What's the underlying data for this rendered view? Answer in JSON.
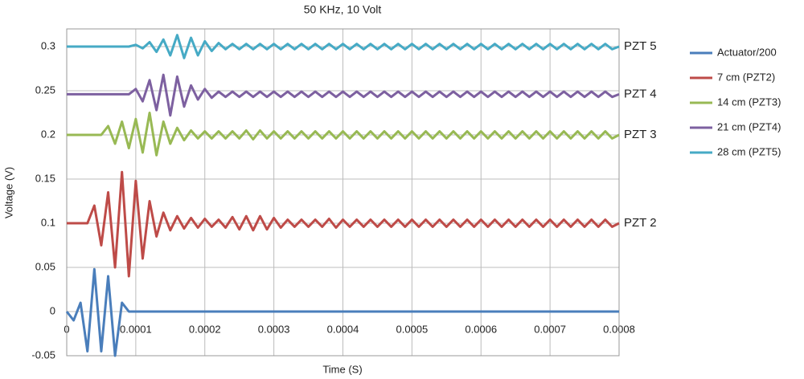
{
  "chart_data": {
    "type": "line",
    "title": "50 KHz, 10 Volt",
    "x_label": "Time (S)",
    "y_label": "Voltage (V)",
    "x": [
      0,
      1e-05,
      2e-05,
      3e-05,
      4e-05,
      5e-05,
      6e-05,
      7e-05,
      8e-05,
      9e-05,
      0.0001,
      0.00011,
      0.00012,
      0.00013,
      0.00014,
      0.00015,
      0.00016,
      0.00017,
      0.00018,
      0.00019,
      0.0002,
      0.00021,
      0.00022,
      0.00023,
      0.00024,
      0.00025,
      0.00026,
      0.00027,
      0.00028,
      0.00029,
      0.0003,
      0.00031,
      0.00032,
      0.00033,
      0.00034,
      0.00035,
      0.00036,
      0.00037,
      0.00038,
      0.00039,
      0.0004,
      0.00041,
      0.00042,
      0.00043,
      0.00044,
      0.00045,
      0.00046,
      0.00047,
      0.00048,
      0.00049,
      0.0005,
      0.00051,
      0.00052,
      0.00053,
      0.00054,
      0.00055,
      0.00056,
      0.00057,
      0.00058,
      0.00059,
      0.0006,
      0.00061,
      0.00062,
      0.00063,
      0.00064,
      0.00065,
      0.00066,
      0.00067,
      0.00068,
      0.00069,
      0.0007,
      0.00071,
      0.00072,
      0.00073,
      0.00074,
      0.00075,
      0.00076,
      0.00077,
      0.00078,
      0.00079,
      0.0008
    ],
    "series": [
      {
        "name": "Actuator/200",
        "color": "#4a7ebb",
        "values": [
          0,
          -0.01,
          0.01,
          -0.045,
          0.048,
          -0.045,
          0.04,
          -0.05,
          0.01,
          0,
          0,
          0,
          0,
          0,
          0,
          0,
          0,
          0,
          0,
          0,
          0,
          0,
          0,
          0,
          0,
          0,
          0,
          0,
          0,
          0,
          0,
          0,
          0,
          0,
          0,
          0,
          0,
          0,
          0,
          0,
          0,
          0,
          0,
          0,
          0,
          0,
          0,
          0,
          0,
          0,
          0,
          0,
          0,
          0,
          0,
          0,
          0,
          0,
          0,
          0,
          0,
          0,
          0,
          0,
          0,
          0,
          0,
          0,
          0,
          0,
          0,
          0,
          0,
          0,
          0,
          0,
          0,
          0,
          0,
          0,
          0
        ]
      },
      {
        "name": "7 cm (PZT2)",
        "color": "#be4b48",
        "values": [
          0.1,
          0.1,
          0.1,
          0.1,
          0.12,
          0.075,
          0.135,
          0.05,
          0.158,
          0.04,
          0.148,
          0.06,
          0.125,
          0.085,
          0.112,
          0.092,
          0.108,
          0.094,
          0.106,
          0.095,
          0.105,
          0.096,
          0.104,
          0.095,
          0.107,
          0.093,
          0.108,
          0.092,
          0.108,
          0.093,
          0.106,
          0.095,
          0.104,
          0.096,
          0.104,
          0.096,
          0.104,
          0.096,
          0.105,
          0.095,
          0.104,
          0.096,
          0.104,
          0.096,
          0.104,
          0.096,
          0.104,
          0.096,
          0.104,
          0.096,
          0.104,
          0.096,
          0.104,
          0.096,
          0.104,
          0.096,
          0.104,
          0.096,
          0.104,
          0.096,
          0.104,
          0.096,
          0.104,
          0.096,
          0.104,
          0.096,
          0.104,
          0.096,
          0.104,
          0.096,
          0.104,
          0.096,
          0.104,
          0.096,
          0.104,
          0.096,
          0.104,
          0.096,
          0.104,
          0.096,
          0.1
        ]
      },
      {
        "name": "14 cm (PZT3)",
        "color": "#98b954",
        "values": [
          0.2,
          0.2,
          0.2,
          0.2,
          0.2,
          0.2,
          0.21,
          0.19,
          0.215,
          0.185,
          0.218,
          0.18,
          0.225,
          0.177,
          0.215,
          0.19,
          0.208,
          0.194,
          0.205,
          0.196,
          0.204,
          0.196,
          0.204,
          0.196,
          0.204,
          0.196,
          0.205,
          0.195,
          0.205,
          0.196,
          0.204,
          0.196,
          0.204,
          0.196,
          0.204,
          0.196,
          0.204,
          0.196,
          0.204,
          0.196,
          0.204,
          0.196,
          0.204,
          0.196,
          0.204,
          0.196,
          0.204,
          0.196,
          0.204,
          0.196,
          0.204,
          0.196,
          0.204,
          0.196,
          0.204,
          0.196,
          0.204,
          0.196,
          0.204,
          0.196,
          0.204,
          0.196,
          0.204,
          0.196,
          0.204,
          0.196,
          0.204,
          0.196,
          0.204,
          0.196,
          0.204,
          0.196,
          0.204,
          0.196,
          0.204,
          0.196,
          0.204,
          0.196,
          0.204,
          0.196,
          0.2
        ]
      },
      {
        "name": "21 cm (PZT4)",
        "color": "#7d60a0",
        "values": [
          0.246,
          0.246,
          0.246,
          0.246,
          0.246,
          0.246,
          0.246,
          0.246,
          0.246,
          0.246,
          0.252,
          0.238,
          0.262,
          0.228,
          0.268,
          0.222,
          0.266,
          0.232,
          0.256,
          0.24,
          0.252,
          0.242,
          0.249,
          0.243,
          0.249,
          0.243,
          0.249,
          0.243,
          0.249,
          0.243,
          0.249,
          0.243,
          0.249,
          0.243,
          0.249,
          0.243,
          0.249,
          0.243,
          0.249,
          0.243,
          0.249,
          0.243,
          0.249,
          0.243,
          0.249,
          0.243,
          0.249,
          0.243,
          0.249,
          0.243,
          0.249,
          0.243,
          0.249,
          0.243,
          0.249,
          0.243,
          0.249,
          0.243,
          0.249,
          0.243,
          0.249,
          0.243,
          0.249,
          0.243,
          0.249,
          0.243,
          0.249,
          0.243,
          0.249,
          0.243,
          0.249,
          0.243,
          0.249,
          0.243,
          0.249,
          0.243,
          0.249,
          0.243,
          0.249,
          0.243,
          0.246
        ]
      },
      {
        "name": "28 cm (PZT5)",
        "color": "#46aac5",
        "values": [
          0.3,
          0.3,
          0.3,
          0.3,
          0.3,
          0.3,
          0.3,
          0.3,
          0.3,
          0.3,
          0.302,
          0.298,
          0.305,
          0.294,
          0.308,
          0.29,
          0.313,
          0.287,
          0.31,
          0.29,
          0.306,
          0.295,
          0.304,
          0.297,
          0.303,
          0.297,
          0.303,
          0.297,
          0.303,
          0.297,
          0.303,
          0.297,
          0.303,
          0.297,
          0.303,
          0.297,
          0.303,
          0.297,
          0.303,
          0.297,
          0.303,
          0.297,
          0.303,
          0.297,
          0.303,
          0.297,
          0.303,
          0.297,
          0.303,
          0.297,
          0.303,
          0.297,
          0.303,
          0.297,
          0.303,
          0.297,
          0.303,
          0.297,
          0.303,
          0.297,
          0.303,
          0.297,
          0.303,
          0.297,
          0.303,
          0.297,
          0.303,
          0.297,
          0.303,
          0.297,
          0.303,
          0.297,
          0.303,
          0.297,
          0.303,
          0.297,
          0.303,
          0.297,
          0.303,
          0.297,
          0.3
        ]
      }
    ],
    "xlim": [
      0,
      0.0008
    ],
    "xticks": [
      0,
      0.0001,
      0.0002,
      0.0003,
      0.0004,
      0.0005,
      0.0006,
      0.0007,
      0.0008
    ],
    "ylim": [
      -0.05,
      0.32
    ],
    "yticks": [
      -0.05,
      0,
      0.05,
      0.1,
      0.15,
      0.2,
      0.25,
      0.3
    ],
    "grid": true,
    "legend": "right",
    "annotations": [
      {
        "text": "PZT 5",
        "y": 0.3
      },
      {
        "text": "PZT 4",
        "y": 0.246
      },
      {
        "text": "PZT 3",
        "y": 0.2
      },
      {
        "text": "PZT 2",
        "y": 0.1
      }
    ]
  }
}
